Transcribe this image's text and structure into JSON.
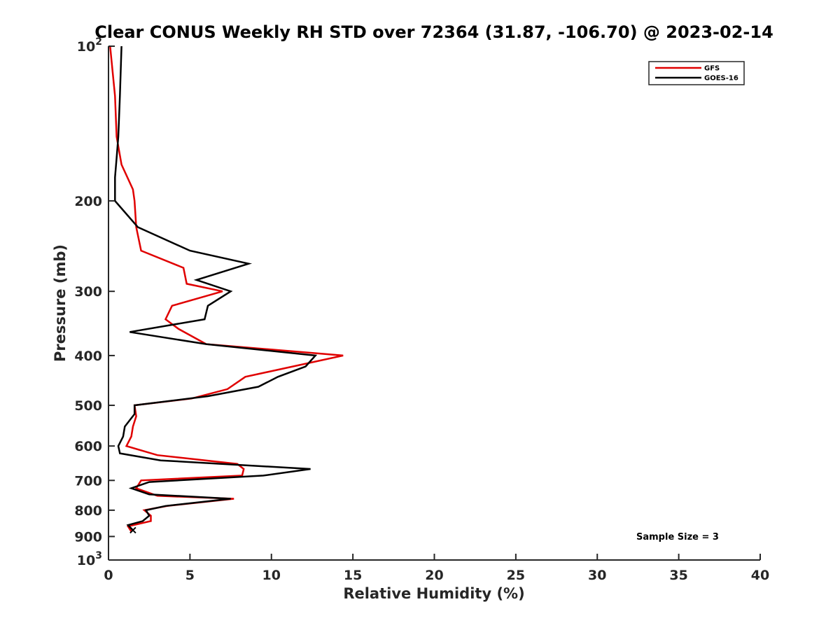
{
  "chart_data": {
    "type": "line",
    "title": "Clear CONUS Weekly RH STD over 72364 (31.87, -106.70) @ 2023-02-14",
    "xlabel": "Relative Humidity (%)",
    "ylabel": "Pressure (mb)",
    "xlim": [
      0,
      40
    ],
    "ylim": [
      100,
      1000
    ],
    "y_scale": "log",
    "y_reversed": true,
    "x_ticks": [
      0,
      5,
      10,
      15,
      20,
      25,
      30,
      35,
      40
    ],
    "x_tick_labels": [
      "0",
      "5",
      "10",
      "15",
      "20",
      "25",
      "30",
      "35",
      "40"
    ],
    "y_ticks": [
      100,
      200,
      300,
      400,
      500,
      600,
      700,
      800,
      900,
      1000
    ],
    "y_tick_labels": [
      {
        "base": "10",
        "exp": "2"
      },
      {
        "base": "200",
        "exp": ""
      },
      {
        "base": "300",
        "exp": ""
      },
      {
        "base": "400",
        "exp": ""
      },
      {
        "base": "500",
        "exp": ""
      },
      {
        "base": "600",
        "exp": ""
      },
      {
        "base": "700",
        "exp": ""
      },
      {
        "base": "800",
        "exp": ""
      },
      {
        "base": "900",
        "exp": ""
      },
      {
        "base": "10",
        "exp": "3"
      }
    ],
    "grid": false,
    "legend_position": "top-right",
    "annotation": "Sample Size = 3",
    "series": [
      {
        "name": "GFS",
        "color": "#e00000",
        "points": [
          [
            0.1,
            100
          ],
          [
            0.4,
            125
          ],
          [
            0.5,
            150
          ],
          [
            0.8,
            170
          ],
          [
            1.5,
            190
          ],
          [
            1.6,
            200
          ],
          [
            1.7,
            225
          ],
          [
            2.0,
            250
          ],
          [
            4.6,
            270
          ],
          [
            4.8,
            290
          ],
          [
            7.0,
            300
          ],
          [
            3.9,
            320
          ],
          [
            3.5,
            340
          ],
          [
            4.3,
            355
          ],
          [
            6.0,
            380
          ],
          [
            14.4,
            400
          ],
          [
            8.4,
            440
          ],
          [
            7.3,
            465
          ],
          [
            5.1,
            485
          ],
          [
            1.6,
            500
          ],
          [
            1.7,
            525
          ],
          [
            1.5,
            550
          ],
          [
            1.4,
            575
          ],
          [
            1.1,
            600
          ],
          [
            3.0,
            625
          ],
          [
            7.9,
            650
          ],
          [
            8.3,
            665
          ],
          [
            8.2,
            685
          ],
          [
            2.0,
            700
          ],
          [
            1.7,
            725
          ],
          [
            3.0,
            750
          ],
          [
            7.7,
            760
          ],
          [
            3.6,
            785
          ],
          [
            2.2,
            800
          ],
          [
            2.6,
            820
          ],
          [
            2.6,
            840
          ],
          [
            1.2,
            860
          ],
          [
            1.4,
            880
          ]
        ]
      },
      {
        "name": "GOES-16",
        "color": "#000000",
        "points": [
          [
            0.8,
            100
          ],
          [
            0.7,
            125
          ],
          [
            0.6,
            150
          ],
          [
            0.5,
            165
          ],
          [
            0.4,
            180
          ],
          [
            0.4,
            200
          ],
          [
            1.8,
            225
          ],
          [
            5.0,
            250
          ],
          [
            8.6,
            265
          ],
          [
            5.4,
            285
          ],
          [
            7.5,
            300
          ],
          [
            6.1,
            320
          ],
          [
            5.9,
            340
          ],
          [
            1.3,
            360
          ],
          [
            6.0,
            380
          ],
          [
            12.7,
            400
          ],
          [
            12.1,
            420
          ],
          [
            10.4,
            440
          ],
          [
            9.2,
            460
          ],
          [
            6.1,
            480
          ],
          [
            1.6,
            500
          ],
          [
            1.6,
            520
          ],
          [
            1.0,
            550
          ],
          [
            0.9,
            575
          ],
          [
            0.6,
            600
          ],
          [
            0.7,
            620
          ],
          [
            3.2,
            640
          ],
          [
            12.4,
            665
          ],
          [
            9.5,
            685
          ],
          [
            2.5,
            705
          ],
          [
            1.4,
            725
          ],
          [
            2.5,
            745
          ],
          [
            7.5,
            760
          ],
          [
            3.5,
            785
          ],
          [
            2.3,
            800
          ],
          [
            2.5,
            820
          ],
          [
            2.1,
            840
          ],
          [
            1.2,
            855
          ],
          [
            1.5,
            875
          ]
        ]
      }
    ]
  }
}
